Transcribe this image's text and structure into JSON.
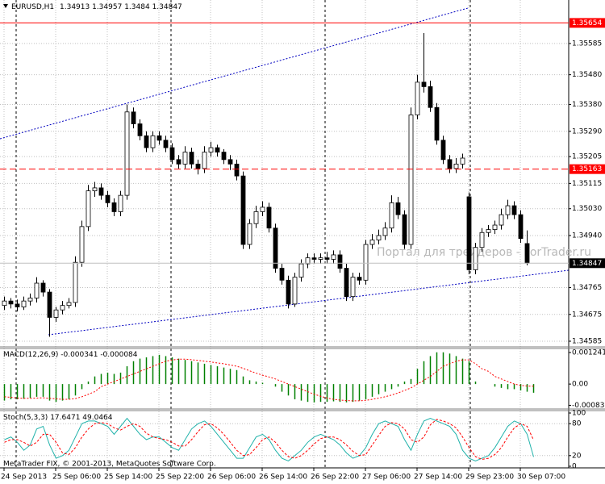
{
  "chart_data": [
    {
      "type": "candlestick",
      "symbol": "EURUSD,H1",
      "watermark": "Портал для трейдеров - ForTrader.ru",
      "copyright": "MetaTrader FIX, © 2001-2013, MetaQuotes Software Corp.",
      "bull_color": "#ffffff",
      "bear_color": "#000000",
      "grid": true,
      "last_price_color": "#000000",
      "open": [
        1.34705,
        1.3472,
        1.3471,
        1.347,
        1.3472,
        1.3473,
        1.3478,
        1.3475,
        1.34665,
        1.3469,
        1.34705,
        1.34715,
        1.3485,
        1.3497,
        1.3509,
        1.351,
        1.35075,
        1.3505,
        1.3502,
        1.35075,
        1.35355,
        1.35315,
        1.35275,
        1.35235,
        1.35275,
        1.3526,
        1.35235,
        1.35195,
        1.3518,
        1.3522,
        1.3518,
        1.35165,
        1.3522,
        1.35235,
        1.3522,
        1.35195,
        1.3518,
        1.3514,
        1.3491,
        1.3498,
        1.3502,
        1.35035,
        1.34965,
        1.3483,
        1.3479,
        1.3471,
        1.348,
        1.34845,
        1.34865,
        1.3486,
        1.34865,
        1.3486,
        1.34875,
        1.3483,
        1.34735,
        1.348,
        1.3479,
        1.3491,
        1.34925,
        1.3494,
        1.34965,
        1.3505,
        1.3501,
        1.3491,
        1.35345,
        1.35455,
        1.3544,
        1.3537,
        1.3526,
        1.35195,
        1.35165,
        1.3518,
        1.3507,
        1.34825,
        1.349,
        1.3495,
        1.3496,
        1.34975,
        1.3501,
        1.3504,
        1.3501,
        1.34913
      ],
      "high": [
        1.34735,
        1.3473,
        1.34725,
        1.34735,
        1.34745,
        1.348,
        1.3479,
        1.3476,
        1.347,
        1.3472,
        1.3473,
        1.3487,
        1.3499,
        1.3511,
        1.3512,
        1.35115,
        1.3509,
        1.35065,
        1.3509,
        1.3538,
        1.3537,
        1.3533,
        1.3529,
        1.3529,
        1.3529,
        1.35275,
        1.3525,
        1.3521,
        1.3524,
        1.35235,
        1.35195,
        1.3524,
        1.35255,
        1.35245,
        1.3523,
        1.3521,
        1.35195,
        1.35155,
        1.34995,
        1.3504,
        1.35055,
        1.3505,
        1.3498,
        1.34845,
        1.34805,
        1.34815,
        1.3486,
        1.3488,
        1.3488,
        1.3488,
        1.34885,
        1.3489,
        1.3489,
        1.34845,
        1.34815,
        1.34815,
        1.34925,
        1.34945,
        1.3496,
        1.34985,
        1.35075,
        1.3507,
        1.35025,
        1.3537,
        1.3548,
        1.3562,
        1.3546,
        1.35385,
        1.35275,
        1.3521,
        1.352,
        1.35215,
        1.35085,
        1.34915,
        1.34965,
        1.34975,
        1.3499,
        1.3503,
        1.3506,
        1.35055,
        1.35025,
        1.34957
      ],
      "low": [
        1.3469,
        1.34695,
        1.34685,
        1.3469,
        1.34705,
        1.34715,
        1.34735,
        1.346,
        1.3465,
        1.34675,
        1.34695,
        1.347,
        1.34835,
        1.34955,
        1.3507,
        1.3506,
        1.35035,
        1.35005,
        1.35005,
        1.3506,
        1.353,
        1.3526,
        1.3522,
        1.3522,
        1.35245,
        1.3522,
        1.3518,
        1.35165,
        1.35165,
        1.35165,
        1.35145,
        1.3515,
        1.35205,
        1.35205,
        1.3518,
        1.3516,
        1.35125,
        1.34895,
        1.34895,
        1.34965,
        1.35005,
        1.3495,
        1.34815,
        1.34775,
        1.34695,
        1.347,
        1.34785,
        1.3483,
        1.34845,
        1.34845,
        1.34845,
        1.34845,
        1.34815,
        1.3472,
        1.3472,
        1.34775,
        1.34775,
        1.34895,
        1.3491,
        1.34925,
        1.3495,
        1.34995,
        1.34895,
        1.34895,
        1.3533,
        1.3542,
        1.35355,
        1.35245,
        1.3518,
        1.3515,
        1.3515,
        1.35165,
        1.3481,
        1.3481,
        1.34885,
        1.34935,
        1.34945,
        1.3496,
        1.34995,
        1.34995,
        1.34915,
        1.3484
      ],
      "close": [
        1.3472,
        1.3471,
        1.347,
        1.3472,
        1.3473,
        1.3478,
        1.3475,
        1.34665,
        1.3469,
        1.34705,
        1.34715,
        1.3485,
        1.3497,
        1.3509,
        1.351,
        1.35075,
        1.3505,
        1.3502,
        1.35075,
        1.35355,
        1.35315,
        1.35275,
        1.35235,
        1.35275,
        1.3526,
        1.35235,
        1.35195,
        1.3518,
        1.3522,
        1.3518,
        1.35165,
        1.3522,
        1.35235,
        1.3522,
        1.35195,
        1.3518,
        1.3514,
        1.3491,
        1.3498,
        1.3502,
        1.35035,
        1.34965,
        1.3483,
        1.3479,
        1.3471,
        1.348,
        1.34845,
        1.34865,
        1.3486,
        1.34865,
        1.3486,
        1.34875,
        1.3483,
        1.34735,
        1.348,
        1.3479,
        1.3491,
        1.34925,
        1.3494,
        1.34965,
        1.3505,
        1.3501,
        1.3491,
        1.35345,
        1.35455,
        1.3544,
        1.3537,
        1.3526,
        1.35195,
        1.35165,
        1.3518,
        1.352,
        1.34825,
        1.349,
        1.3495,
        1.3496,
        1.34975,
        1.3501,
        1.3504,
        1.3501,
        1.3493,
        1.34847
      ],
      "ylim": [
        1.34566,
        1.35731
      ],
      "yticks": [
        1.35585,
        {
          "value": 1.3548,
          "label": "1.35480"
        },
        {
          "value": 1.3538,
          "label": "1.35380"
        },
        {
          "value": 1.3529,
          "label": "1.35290"
        },
        1.35205,
        1.35115,
        {
          "value": 1.3503,
          "label": "1.35030"
        },
        {
          "value": 1.3494,
          "label": "1.34940"
        },
        1.34765,
        1.34675,
        1.34585
      ],
      "xlim": [
        -0.625,
        87.5
      ],
      "xticks": [
        {
          "value": 0,
          "label": "24 Sep 2013"
        },
        {
          "value": 8,
          "label": "25 Sep 06:00"
        },
        {
          "value": 16,
          "label": "25 Sep 14:00"
        },
        {
          "value": 24,
          "label": "25 Sep 22:00"
        },
        {
          "value": 32,
          "label": "26 Sep 06:00"
        },
        {
          "value": 40,
          "label": "26 Sep 14:00"
        },
        {
          "value": 48,
          "label": "26 Sep 22:00"
        },
        {
          "value": 56,
          "label": "27 Sep 06:00"
        },
        {
          "value": 64,
          "label": "27 Sep 14:00"
        },
        {
          "value": 72,
          "label": "29 Sep 23:00"
        },
        {
          "value": 80,
          "label": "30 Sep 07:00"
        }
      ],
      "levels": [
        {
          "value": 1.35654,
          "color": "#ff0000",
          "dash": "solid"
        },
        {
          "value": 1.35163,
          "color": "#ff0000",
          "dash": "dashed"
        }
      ]
    },
    {
      "type": "macd",
      "title": "MACD(12,26,9)",
      "histogram": {
        "color": "#008000",
        "values": [
          -0.00065,
          -0.0006,
          -0.0006,
          -0.00058,
          -0.00055,
          -0.0005,
          -0.0005,
          -0.00065,
          -0.0007,
          -0.00065,
          -0.0006,
          -0.00045,
          -0.0002,
          0.0001,
          0.0003,
          0.0004,
          0.00045,
          0.0004,
          0.00045,
          0.0007,
          0.0009,
          0.001,
          0.00105,
          0.0011,
          0.00115,
          0.0011,
          0.00105,
          0.001,
          0.00095,
          0.0009,
          0.00085,
          0.0008,
          0.00075,
          0.0007,
          0.00065,
          0.0006,
          0.00055,
          0.0003,
          0.00015,
          0.0001,
          5e-05,
          0.0,
          -0.0001,
          -0.0003,
          -0.00045,
          -0.0006,
          -0.00065,
          -0.0007,
          -0.00072,
          -0.0007,
          -0.0007,
          -0.00068,
          -0.0007,
          -0.00072,
          -0.0007,
          -0.00065,
          -0.0006,
          -0.0005,
          -0.0004,
          -0.0003,
          -0.0002,
          -0.0001,
          0.0001,
          0.0002,
          0.0006,
          0.0009,
          0.0011,
          0.00125,
          0.00125,
          0.0012,
          0.0011,
          0.001,
          0.0009,
          0.0001,
          0.0,
          0.0,
          -0.0001,
          -0.00015,
          -0.0002,
          -0.0002,
          -0.00025,
          -0.0003,
          -0.000341
        ]
      },
      "signal": {
        "color": "#ff0000",
        "values": [
          -0.0005,
          -0.00052,
          -0.00055,
          -0.00056,
          -0.00056,
          -0.00055,
          -0.00054,
          -0.00056,
          -0.00058,
          -0.0006,
          -0.0006,
          -0.00057,
          -0.0005,
          -0.0004,
          -0.0003,
          -0.0001,
          0.0,
          0.0001,
          0.0002,
          0.0003,
          0.0004,
          0.0005,
          0.0006,
          0.0007,
          0.0008,
          0.0009,
          0.00095,
          0.00098,
          0.00098,
          0.00096,
          0.00093,
          0.0009,
          0.00087,
          0.00083,
          0.0008,
          0.00075,
          0.0007,
          0.00062,
          0.00052,
          0.00043,
          0.00035,
          0.00028,
          0.0002,
          0.0001,
          0.0,
          -0.0001,
          -0.0002,
          -0.0003,
          -0.0004,
          -0.00048,
          -0.00055,
          -0.0006,
          -0.00063,
          -0.00065,
          -0.00066,
          -0.00066,
          -0.00064,
          -0.0006,
          -0.00055,
          -0.0005,
          -0.00043,
          -0.00035,
          -0.00025,
          -0.00015,
          0.0,
          0.00015,
          0.0003,
          0.0005,
          0.0007,
          0.0008,
          0.0009,
          0.00095,
          0.00095,
          0.0008,
          0.0006,
          0.0005,
          0.0003,
          0.0002,
          0.0001,
          0.0,
          -5e-05,
          -8e-05,
          -8.4e-05
        ]
      },
      "ylim": [
        -0.00098,
        0.0014
      ],
      "yticks": [
        0.001241,
        {
          "value": 0,
          "label": "0.00"
        },
        -0.000835
      ]
    },
    {
      "type": "stochastic",
      "title": "Stoch(5,3,3)",
      "main": {
        "color": "#20b2aa",
        "values": [
          50,
          55,
          45,
          30,
          40,
          70,
          75,
          40,
          15,
          20,
          30,
          55,
          80,
          85,
          85,
          80,
          75,
          60,
          75,
          90,
          75,
          60,
          50,
          55,
          55,
          45,
          35,
          30,
          50,
          70,
          80,
          85,
          75,
          60,
          45,
          30,
          15,
          15,
          35,
          55,
          60,
          50,
          30,
          15,
          10,
          20,
          30,
          45,
          55,
          60,
          55,
          50,
          40,
          25,
          15,
          20,
          35,
          60,
          80,
          85,
          80,
          75,
          50,
          30,
          60,
          85,
          90,
          85,
          80,
          75,
          60,
          30,
          15,
          10,
          15,
          20,
          35,
          55,
          75,
          85,
          80,
          60,
          17.6471
        ]
      },
      "signal": {
        "color": "#ff0000",
        "values": [
          45,
          50,
          50,
          45,
          38,
          45,
          60,
          60,
          45,
          25,
          22,
          35,
          55,
          70,
          80,
          82,
          80,
          72,
          68,
          75,
          80,
          75,
          62,
          55,
          52,
          50,
          45,
          38,
          38,
          50,
          65,
          78,
          80,
          72,
          60,
          45,
          30,
          20,
          22,
          35,
          50,
          55,
          45,
          30,
          18,
          15,
          20,
          30,
          42,
          52,
          55,
          55,
          50,
          40,
          28,
          20,
          22,
          40,
          58,
          75,
          82,
          80,
          70,
          50,
          45,
          55,
          78,
          88,
          85,
          80,
          72,
          55,
          35,
          18,
          13,
          15,
          22,
          35,
          55,
          72,
          80,
          75,
          49.0464
        ]
      },
      "ylim": [
        0,
        100
      ],
      "yticks": [
        100,
        80,
        20,
        0
      ]
    }
  ]
}
